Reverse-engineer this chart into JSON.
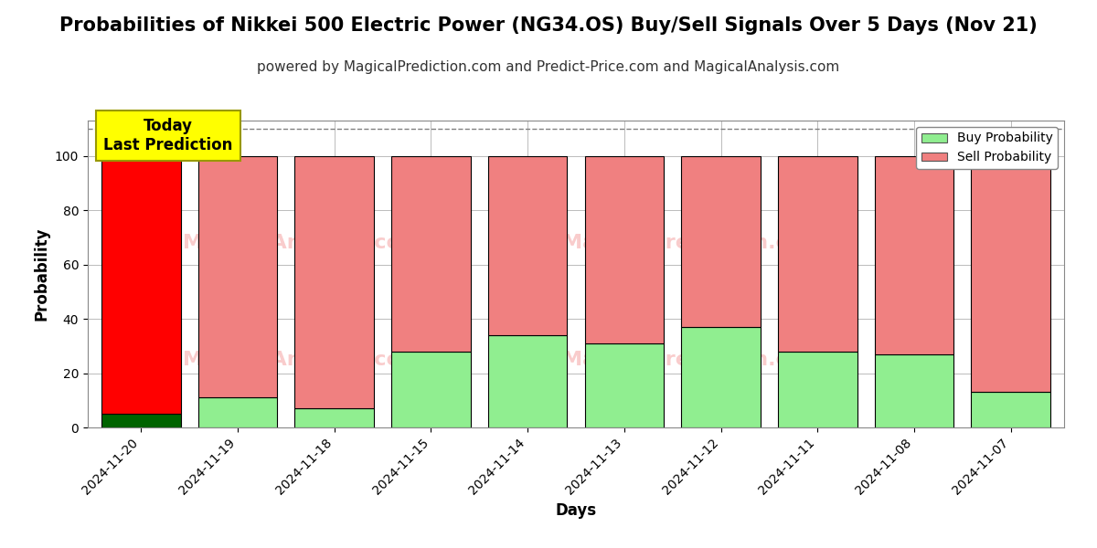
{
  "title": "Probabilities of Nikkei 500 Electric Power (NG34.OS) Buy/Sell Signals Over 5 Days (Nov 21)",
  "subtitle": "powered by MagicalPrediction.com and Predict-Price.com and MagicalAnalysis.com",
  "xlabel": "Days",
  "ylabel": "Probability",
  "categories": [
    "2024-11-20",
    "2024-11-19",
    "2024-11-18",
    "2024-11-15",
    "2024-11-14",
    "2024-11-13",
    "2024-11-12",
    "2024-11-11",
    "2024-11-08",
    "2024-11-07"
  ],
  "buy_values": [
    5,
    11,
    7,
    28,
    34,
    31,
    37,
    28,
    27,
    13
  ],
  "sell_values": [
    95,
    89,
    93,
    72,
    66,
    69,
    63,
    72,
    73,
    87
  ],
  "today_buy_color": "#006400",
  "today_sell_color": "#ff0000",
  "buy_color": "#90ee90",
  "sell_color": "#f08080",
  "today_label_bg": "#ffff00",
  "today_label_text": "Today\nLast Prediction",
  "ylim": [
    0,
    113
  ],
  "dashed_line_y": 110,
  "background_color": "#ffffff",
  "legend_buy": "Buy Probability",
  "legend_sell": "Sell Probability",
  "title_fontsize": 15,
  "subtitle_fontsize": 11,
  "bar_edgecolor": "#000000",
  "grid_color": "#bbbbbb",
  "bar_width": 0.82
}
